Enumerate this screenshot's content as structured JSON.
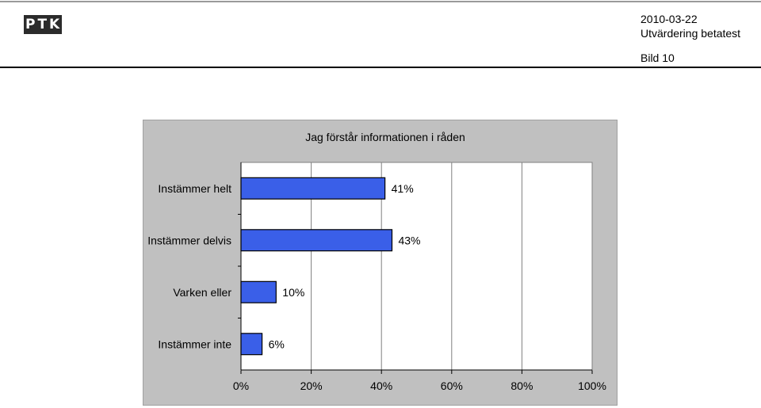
{
  "header": {
    "logo_text": "PTK",
    "date": "2010-03-22",
    "subtitle": "Utvärdering betatest",
    "slide_label": "Bild 10"
  },
  "colors": {
    "bar_fill": "#3a5fe8",
    "bar_stroke": "#000000",
    "plot_bg": "#ffffff",
    "chart_bg": "#c0c0c0",
    "grid": "#808080"
  },
  "chart_data": {
    "type": "bar",
    "orientation": "horizontal",
    "title": "Jag förstår informationen i råden",
    "categories": [
      "Instämmer helt",
      "Instämmer delvis",
      "Varken eller",
      "Instämmer inte"
    ],
    "values": [
      41,
      43,
      10,
      6
    ],
    "value_labels": [
      "41%",
      "43%",
      "10%",
      "6%"
    ],
    "xlim": [
      0,
      100
    ],
    "x_ticks": [
      0,
      20,
      40,
      60,
      80,
      100
    ],
    "x_tick_labels": [
      "0%",
      "20%",
      "40%",
      "60%",
      "80%",
      "100%"
    ],
    "grid": true,
    "legend": "none"
  }
}
